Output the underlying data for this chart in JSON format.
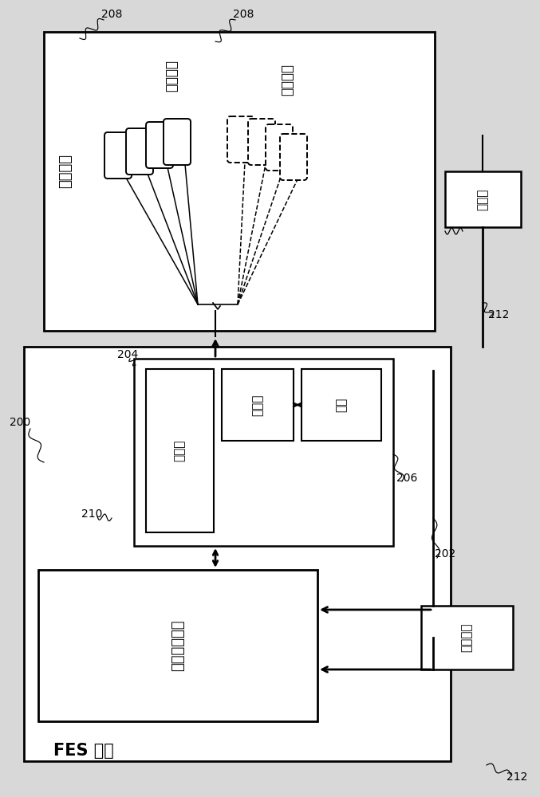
{
  "bg_color": "#d8d8d8",
  "box_color": "#ffffff",
  "line_color": "#000000",
  "labels": {
    "fes_system": "FES 系统",
    "patient_skin": "患者皮肤",
    "surface_electrode": "表面电极",
    "percutaneous_electrode": "经皮电极",
    "sensor": "传感器",
    "output_stage": "输出级",
    "power_stage": "功率级",
    "control": "控制",
    "central_logic": "中央逻辑电路",
    "practitioner": "从业人员"
  },
  "ref": {
    "208a": "208",
    "208b": "208",
    "200": "200",
    "202": "202",
    "204": "204",
    "206": "206",
    "210": "210",
    "212a": "212",
    "212b": "212"
  }
}
